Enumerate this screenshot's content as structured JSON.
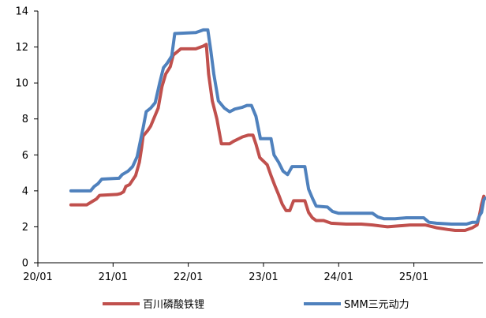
{
  "chart_data": {
    "type": "line",
    "title": "",
    "xlabel": "",
    "ylabel": "",
    "ylim": [
      0,
      14
    ],
    "yticks": [
      0,
      2,
      4,
      6,
      8,
      10,
      12,
      14
    ],
    "xlim": [
      2020.0,
      2025.917
    ],
    "xticks": [
      {
        "x": 2020.0,
        "label": "20/01"
      },
      {
        "x": 2021.0,
        "label": "21/01"
      },
      {
        "x": 2022.0,
        "label": "22/01"
      },
      {
        "x": 2023.0,
        "label": "23/01"
      },
      {
        "x": 2024.0,
        "label": "24/01"
      },
      {
        "x": 2025.0,
        "label": "25/01"
      }
    ],
    "grid": false,
    "legend_position": "bottom",
    "series": [
      {
        "name": "百川磷酸铁锂",
        "color": "#C0504D",
        "points": [
          [
            2020.44,
            3.22
          ],
          [
            2020.65,
            3.22
          ],
          [
            2020.72,
            3.4
          ],
          [
            2020.78,
            3.55
          ],
          [
            2020.82,
            3.75
          ],
          [
            2021.05,
            3.8
          ],
          [
            2021.1,
            3.85
          ],
          [
            2021.14,
            3.95
          ],
          [
            2021.17,
            4.25
          ],
          [
            2021.22,
            4.35
          ],
          [
            2021.26,
            4.6
          ],
          [
            2021.3,
            4.85
          ],
          [
            2021.35,
            5.6
          ],
          [
            2021.38,
            6.4
          ],
          [
            2021.4,
            7.05
          ],
          [
            2021.46,
            7.35
          ],
          [
            2021.5,
            7.6
          ],
          [
            2021.53,
            7.9
          ],
          [
            2021.6,
            8.6
          ],
          [
            2021.65,
            9.8
          ],
          [
            2021.7,
            10.5
          ],
          [
            2021.76,
            10.9
          ],
          [
            2021.8,
            11.55
          ],
          [
            2021.9,
            11.9
          ],
          [
            2022.1,
            11.9
          ],
          [
            2022.2,
            12.05
          ],
          [
            2022.24,
            12.15
          ],
          [
            2022.27,
            10.5
          ],
          [
            2022.32,
            9.0
          ],
          [
            2022.38,
            8.0
          ],
          [
            2022.44,
            6.62
          ],
          [
            2022.55,
            6.62
          ],
          [
            2022.6,
            6.75
          ],
          [
            2022.72,
            7.0
          ],
          [
            2022.8,
            7.1
          ],
          [
            2022.86,
            7.1
          ],
          [
            2022.9,
            6.6
          ],
          [
            2022.95,
            5.85
          ],
          [
            2023.05,
            5.45
          ],
          [
            2023.1,
            4.85
          ],
          [
            2023.15,
            4.3
          ],
          [
            2023.2,
            3.8
          ],
          [
            2023.25,
            3.25
          ],
          [
            2023.3,
            2.9
          ],
          [
            2023.35,
            2.9
          ],
          [
            2023.4,
            3.45
          ],
          [
            2023.55,
            3.45
          ],
          [
            2023.6,
            2.8
          ],
          [
            2023.65,
            2.5
          ],
          [
            2023.7,
            2.35
          ],
          [
            2023.8,
            2.35
          ],
          [
            2023.9,
            2.2
          ],
          [
            2024.1,
            2.15
          ],
          [
            2024.3,
            2.15
          ],
          [
            2024.45,
            2.1
          ],
          [
            2024.55,
            2.05
          ],
          [
            2024.65,
            2.0
          ],
          [
            2024.8,
            2.05
          ],
          [
            2024.95,
            2.1
          ],
          [
            2025.15,
            2.1
          ],
          [
            2025.3,
            1.95
          ],
          [
            2025.45,
            1.85
          ],
          [
            2025.55,
            1.8
          ],
          [
            2025.68,
            1.8
          ],
          [
            2025.78,
            1.95
          ],
          [
            2025.84,
            2.1
          ],
          [
            2025.87,
            2.6
          ],
          [
            2025.9,
            3.25
          ],
          [
            2025.93,
            3.7
          ]
        ]
      },
      {
        "name": "SMM三元动力",
        "color": "#4F81BD",
        "points": [
          [
            2020.44,
            4.0
          ],
          [
            2020.7,
            4.0
          ],
          [
            2020.75,
            4.25
          ],
          [
            2020.8,
            4.4
          ],
          [
            2020.85,
            4.65
          ],
          [
            2021.08,
            4.7
          ],
          [
            2021.12,
            4.9
          ],
          [
            2021.2,
            5.1
          ],
          [
            2021.26,
            5.35
          ],
          [
            2021.32,
            5.9
          ],
          [
            2021.36,
            6.7
          ],
          [
            2021.4,
            7.5
          ],
          [
            2021.44,
            8.4
          ],
          [
            2021.5,
            8.6
          ],
          [
            2021.56,
            8.9
          ],
          [
            2021.62,
            10.0
          ],
          [
            2021.67,
            10.85
          ],
          [
            2021.72,
            11.1
          ],
          [
            2021.78,
            11.5
          ],
          [
            2021.82,
            12.75
          ],
          [
            2022.1,
            12.8
          ],
          [
            2022.2,
            12.95
          ],
          [
            2022.26,
            12.95
          ],
          [
            2022.3,
            11.8
          ],
          [
            2022.34,
            10.5
          ],
          [
            2022.4,
            9.0
          ],
          [
            2022.48,
            8.6
          ],
          [
            2022.55,
            8.4
          ],
          [
            2022.62,
            8.55
          ],
          [
            2022.72,
            8.65
          ],
          [
            2022.78,
            8.75
          ],
          [
            2022.84,
            8.75
          ],
          [
            2022.9,
            8.15
          ],
          [
            2022.96,
            6.9
          ],
          [
            2023.1,
            6.9
          ],
          [
            2023.14,
            6.0
          ],
          [
            2023.2,
            5.6
          ],
          [
            2023.26,
            5.1
          ],
          [
            2023.32,
            4.9
          ],
          [
            2023.38,
            5.35
          ],
          [
            2023.55,
            5.35
          ],
          [
            2023.6,
            4.1
          ],
          [
            2023.65,
            3.6
          ],
          [
            2023.7,
            3.15
          ],
          [
            2023.85,
            3.1
          ],
          [
            2023.92,
            2.85
          ],
          [
            2024.0,
            2.75
          ],
          [
            2024.25,
            2.75
          ],
          [
            2024.45,
            2.75
          ],
          [
            2024.52,
            2.55
          ],
          [
            2024.6,
            2.45
          ],
          [
            2024.75,
            2.45
          ],
          [
            2024.9,
            2.5
          ],
          [
            2025.13,
            2.5
          ],
          [
            2025.2,
            2.25
          ],
          [
            2025.3,
            2.2
          ],
          [
            2025.5,
            2.15
          ],
          [
            2025.7,
            2.15
          ],
          [
            2025.78,
            2.25
          ],
          [
            2025.84,
            2.25
          ],
          [
            2025.87,
            2.6
          ],
          [
            2025.9,
            2.8
          ],
          [
            2025.93,
            3.5
          ],
          [
            2025.95,
            3.6
          ]
        ]
      }
    ]
  }
}
